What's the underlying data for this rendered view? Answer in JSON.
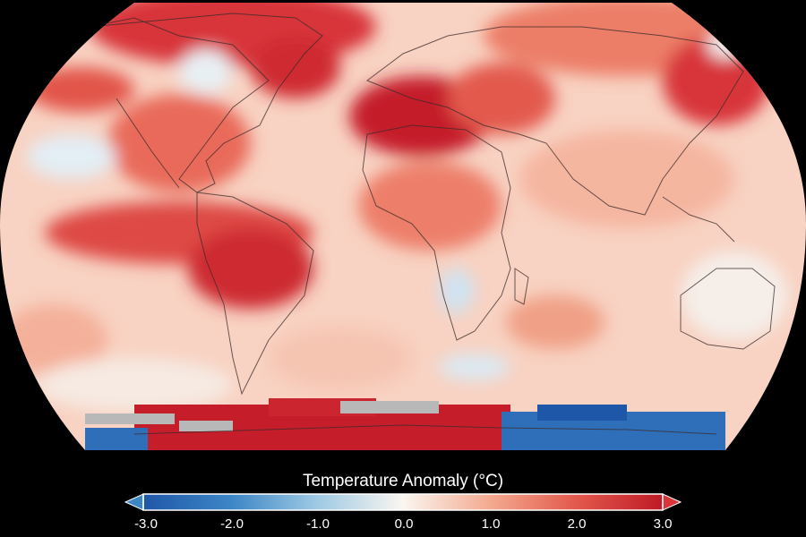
{
  "legend": {
    "title": "Temperature Anomaly (°C)",
    "min": -3.0,
    "max": 3.0,
    "ticks": [
      "-3.0",
      "-2.0",
      "-1.0",
      "0.0",
      "1.0",
      "2.0",
      "3.0"
    ],
    "colors": {
      "cold_end": "#1f57a8",
      "neutral": "#faf6f0",
      "warm_end": "#bf1a26",
      "no_data": "#b8b8b8"
    }
  }
}
